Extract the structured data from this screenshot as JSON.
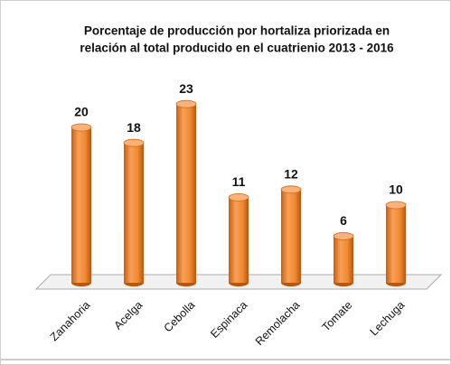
{
  "chart_data": {
    "type": "bar",
    "title": [
      "Porcentaje de producción por hortaliza priorizada en",
      "relación al total producido en el cuatrienio 2013 - 2016"
    ],
    "categories": [
      "Zanahoria",
      "Acelga",
      "Cebolla",
      "Espinaca",
      "Remolacha",
      "Tomate",
      "Lechuga"
    ],
    "values": [
      20,
      18,
      23,
      11,
      12,
      6,
      10
    ],
    "color": "#f28a2e"
  }
}
